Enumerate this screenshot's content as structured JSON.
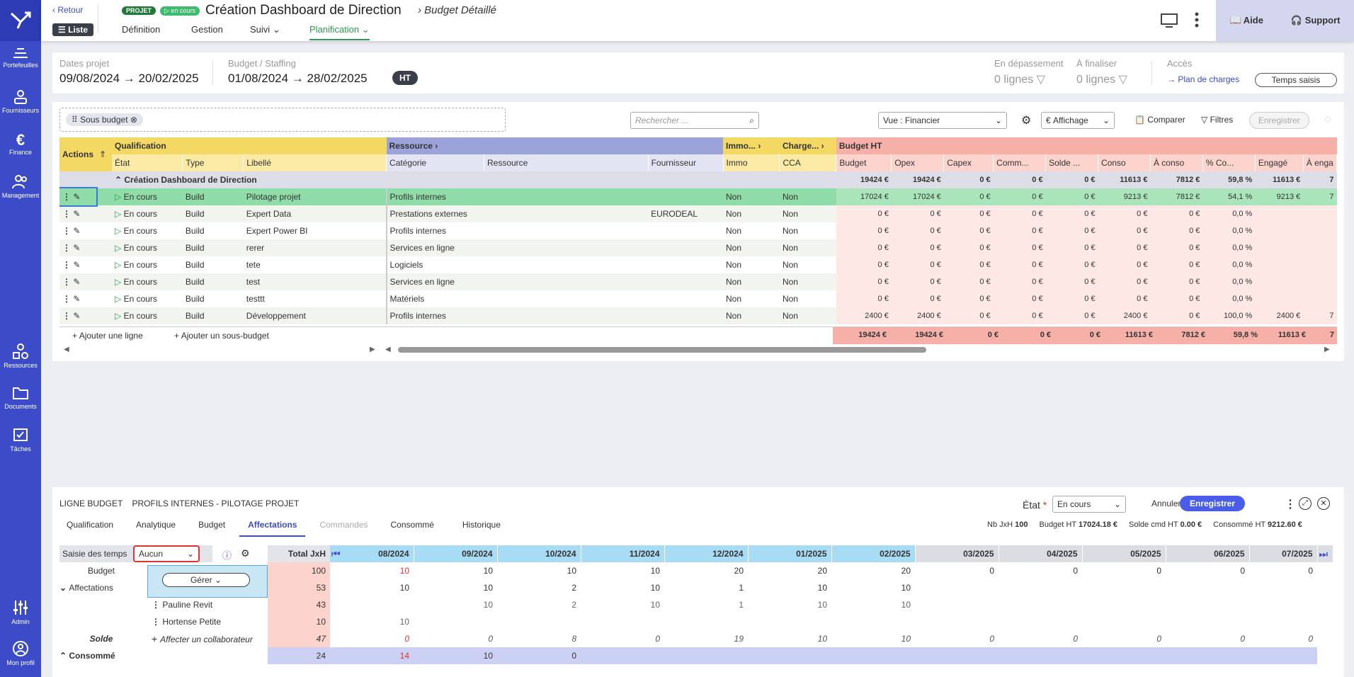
{
  "sidebar": {
    "items": [
      {
        "label": "Portefeuilles",
        "icon": "portfolio-icon"
      },
      {
        "label": "Fournisseurs",
        "icon": "suppliers-icon"
      },
      {
        "label": "Finance",
        "icon": "euro-icon"
      },
      {
        "label": "Management",
        "icon": "people-icon"
      },
      {
        "label": "Ressources",
        "icon": "shapes-icon"
      },
      {
        "label": "Documents",
        "icon": "folder-icon"
      },
      {
        "label": "Tâches",
        "icon": "tasks-icon"
      },
      {
        "label": "Admin",
        "icon": "sliders-icon"
      },
      {
        "label": "Mon profil",
        "icon": "profile-icon"
      }
    ]
  },
  "header": {
    "back": "Retour",
    "list": "Liste",
    "badge_project": "PROJET",
    "badge_status": "en cours",
    "title": "Création Dashboard de Direction",
    "subtitle": "Budget Détaillé",
    "nav": [
      "Définition",
      "Gestion",
      "Suivi",
      "Planification"
    ],
    "help": "Aide",
    "support": "Support"
  },
  "summary": {
    "dates_label": "Dates projet",
    "dates_value": "09/08/2024 → 20/02/2025",
    "budget_label": "Budget / Staffing",
    "budget_value": "01/08/2024 → 28/02/2025",
    "ht": "HT",
    "over_label": "En dépassement",
    "over_value": "0 lignes",
    "finalize_label": "À finaliser",
    "finalize_value": "0 lignes",
    "access_label": "Accès",
    "access_link": "Plan de charges",
    "time_button": "Temps saisis"
  },
  "toolbar": {
    "group_chip": "Sous budget",
    "search_placeholder": "Rechercher ...",
    "view": "Vue : Financier",
    "display": "Affichage",
    "compare": "Comparer",
    "filters": "Filtres",
    "save": "Enregistrer"
  },
  "table": {
    "group_headers": {
      "actions": "Actions",
      "qualification": "Qualification",
      "resource": "Ressource",
      "immo": "Immo...",
      "charge": "Charge...",
      "budget": "Budget HT"
    },
    "columns": [
      "État",
      "Type",
      "Libellé",
      "Catégorie",
      "Ressource",
      "Fournisseur",
      "Immo",
      "CCA",
      "Budget",
      "Opex",
      "Capex",
      "Comm...",
      "Solde ...",
      "Conso",
      "À conso",
      "% Co...",
      "Engagé",
      "À enga"
    ],
    "group_row": {
      "label": "Création Dashboard de Direction",
      "values": [
        "19424 €",
        "19424 €",
        "0 €",
        "0 €",
        "0 €",
        "11613 €",
        "7812 €",
        "59,8 %",
        "11613 €",
        "7"
      ]
    },
    "rows": [
      {
        "etat": "En cours",
        "type": "Build",
        "libelle": "Pilotage projet",
        "categorie": "Profils internes",
        "fournisseur": "",
        "immo": "Non",
        "cca": "Non",
        "values": [
          "17024 €",
          "17024 €",
          "0 €",
          "0 €",
          "0 €",
          "9213 €",
          "7812 €",
          "54,1 %",
          "9213 €",
          "7"
        ]
      },
      {
        "etat": "En cours",
        "type": "Build",
        "libelle": "Expert Data",
        "categorie": "Prestations externes",
        "fournisseur": "EURODEAL",
        "immo": "Non",
        "cca": "Non",
        "values": [
          "0 €",
          "0 €",
          "0 €",
          "0 €",
          "0 €",
          "0 €",
          "0 €",
          "0,0 %",
          "",
          ""
        ]
      },
      {
        "etat": "En cours",
        "type": "Build",
        "libelle": "Expert Power BI",
        "categorie": "Profils internes",
        "fournisseur": "",
        "immo": "Non",
        "cca": "Non",
        "values": [
          "0 €",
          "0 €",
          "0 €",
          "0 €",
          "0 €",
          "0 €",
          "0 €",
          "0,0 %",
          "",
          ""
        ]
      },
      {
        "etat": "En cours",
        "type": "Build",
        "libelle": "rerer",
        "categorie": "Services en ligne",
        "fournisseur": "",
        "immo": "Non",
        "cca": "Non",
        "values": [
          "0 €",
          "0 €",
          "0 €",
          "0 €",
          "0 €",
          "0 €",
          "0 €",
          "0,0 %",
          "",
          ""
        ]
      },
      {
        "etat": "En cours",
        "type": "Build",
        "libelle": "tete",
        "categorie": "Logiciels",
        "fournisseur": "",
        "immo": "Non",
        "cca": "Non",
        "values": [
          "0 €",
          "0 €",
          "0 €",
          "0 €",
          "0 €",
          "0 €",
          "0 €",
          "0,0 %",
          "",
          ""
        ]
      },
      {
        "etat": "En cours",
        "type": "Build",
        "libelle": "test",
        "categorie": "Services en ligne",
        "fournisseur": "",
        "immo": "Non",
        "cca": "Non",
        "values": [
          "0 €",
          "0 €",
          "0 €",
          "0 €",
          "0 €",
          "0 €",
          "0 €",
          "0,0 %",
          "",
          ""
        ]
      },
      {
        "etat": "En cours",
        "type": "Build",
        "libelle": "testtt",
        "categorie": "Matériels",
        "fournisseur": "",
        "immo": "Non",
        "cca": "Non",
        "values": [
          "0 €",
          "0 €",
          "0 €",
          "0 €",
          "0 €",
          "0 €",
          "0 €",
          "0,0 %",
          "",
          ""
        ]
      },
      {
        "etat": "En cours",
        "type": "Build",
        "libelle": "Développement",
        "categorie": "Profils internes",
        "fournisseur": "",
        "immo": "Non",
        "cca": "Non",
        "values": [
          "2400 €",
          "2400 €",
          "0 €",
          "0 €",
          "0 €",
          "2400 €",
          "0 €",
          "100,0 %",
          "2400 €",
          "7"
        ]
      }
    ],
    "add_line": "Ajouter une ligne",
    "add_sub": "Ajouter un sous-budget",
    "total_values": [
      "19424 €",
      "19424 €",
      "0 €",
      "0 €",
      "0 €",
      "11613 €",
      "7812 €",
      "59,8 %",
      "11613 €",
      "7"
    ]
  },
  "detail": {
    "title1": "LIGNE BUDGET",
    "title2": "PROFILS INTERNES - PILOTAGE PROJET",
    "state_label": "État",
    "state_value": "En cours",
    "cancel": "Annuler",
    "save": "Enregistrer",
    "tabs": [
      "Qualification",
      "Analytique",
      "Budget",
      "Affectations",
      "Commandes",
      "Consommé",
      "Historique"
    ],
    "stats": [
      {
        "k": "Nb JxH",
        "v": "100"
      },
      {
        "k": "Budget HT",
        "v": "17024.18 €"
      },
      {
        "k": "Solde cmd HT",
        "v": "0.00 €"
      },
      {
        "k": "Consommé HT",
        "v": "9212.60 €"
      }
    ],
    "time_entry_label": "Saisie des temps",
    "time_entry_value": "Aucun",
    "manage": "Gérer",
    "total_header": "Total JxH",
    "months": [
      "08/2024",
      "09/2024",
      "10/2024",
      "11/2024",
      "12/2024",
      "01/2025",
      "02/2025",
      "03/2025",
      "04/2025",
      "05/2025",
      "06/2025",
      "07/2025"
    ],
    "rows": [
      {
        "label": "Budget",
        "total": "100",
        "vals": [
          "10",
          "10",
          "10",
          "10",
          "20",
          "20",
          "20",
          "0",
          "0",
          "0",
          "0",
          "0"
        ]
      },
      {
        "label": "Affectations",
        "total": "53",
        "vals": [
          "10",
          "10",
          "2",
          "10",
          "1",
          "10",
          "10",
          "",
          "",
          "",
          "",
          ""
        ]
      },
      {
        "label": "Pauline Revit",
        "total": "43",
        "vals": [
          "",
          "10",
          "2",
          "10",
          "1",
          "10",
          "10",
          "",
          "",
          "",
          "",
          ""
        ]
      },
      {
        "label": "Hortense Petite",
        "total": "10",
        "vals": [
          "10",
          "",
          "",
          "",
          "",
          "",
          "",
          "",
          "",
          "",
          "",
          ""
        ]
      },
      {
        "label": "Solde",
        "total": "47",
        "vals": [
          "0",
          "0",
          "8",
          "0",
          "19",
          "10",
          "10",
          "0",
          "0",
          "0",
          "0",
          "0"
        ]
      },
      {
        "label": "Consommé",
        "total": "24",
        "vals": [
          "14",
          "10",
          "0",
          "",
          "",
          "",
          "",
          "",
          "",
          "",
          "",
          ""
        ]
      }
    ],
    "assign": "Affecter un collaborateur"
  }
}
